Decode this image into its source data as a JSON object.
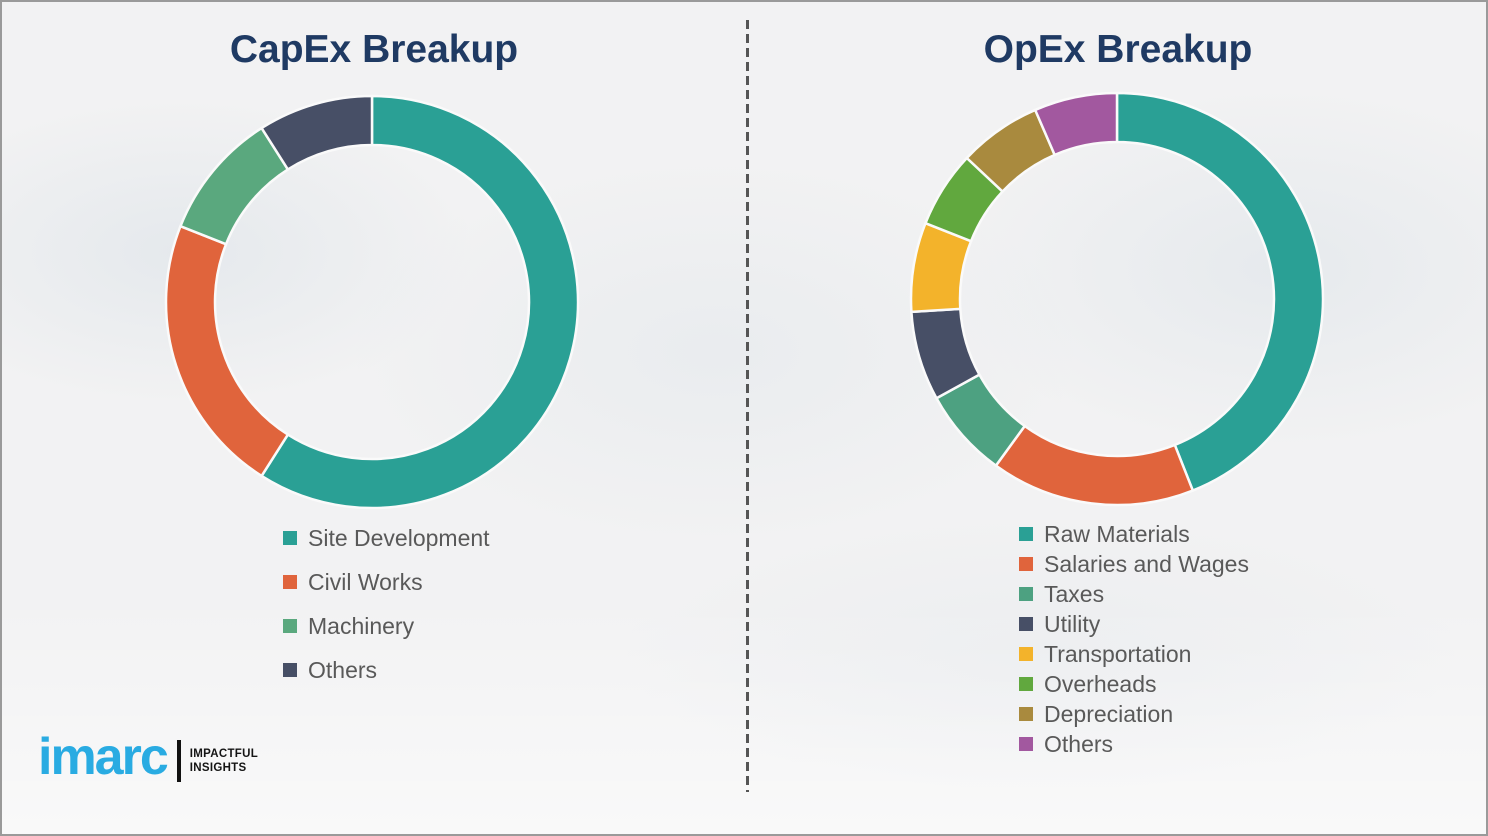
{
  "page": {
    "background_color": "#f2f2f3",
    "border_color": "#9a9a9a",
    "divider_color": "#555555"
  },
  "chart_data": [
    {
      "type": "pie",
      "subtype": "donut",
      "title": "CapEx Breakup",
      "title_color": "#1f3a63",
      "categories": [
        "Site Development",
        "Civil Works",
        "Machinery",
        "Others"
      ],
      "values": [
        59,
        22,
        10,
        9
      ],
      "colors": [
        "#2aa095",
        "#e0643c",
        "#5aa87e",
        "#474f66"
      ],
      "legend_text_color": "#595959",
      "legend_position": "below-left",
      "start_angle_deg": 0,
      "direction": "clockwise",
      "donut_hole_ratio": 0.76
    },
    {
      "type": "pie",
      "subtype": "donut",
      "title": "OpEx Breakup",
      "title_color": "#1f3a63",
      "categories": [
        "Raw Materials",
        "Salaries and Wages",
        "Taxes",
        "Utility",
        "Transportation",
        "Overheads",
        "Depreciation",
        "Others"
      ],
      "values": [
        44,
        16,
        7,
        7,
        7,
        6,
        6.5,
        6.5
      ],
      "colors": [
        "#2aa095",
        "#e0643c",
        "#4da181",
        "#474f66",
        "#f3b32b",
        "#61a83e",
        "#a98a3e",
        "#a2589f"
      ],
      "legend_text_color": "#595959",
      "legend_position": "below-left",
      "start_angle_deg": 0,
      "direction": "clockwise",
      "donut_hole_ratio": 0.76
    }
  ],
  "logo": {
    "brand": "imarc",
    "brand_color": "#29abe2",
    "bar_color": "#111111",
    "tagline_line1": "IMPACTFUL",
    "tagline_line2": "INSIGHTS"
  }
}
